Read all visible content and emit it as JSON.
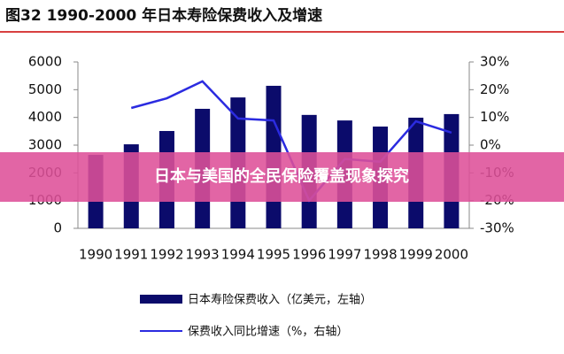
{
  "chart_data": {
    "type": "bar-line",
    "title": "图32 1990-2000 年日本寿险保费收入及增速",
    "categories": [
      "1990",
      "1991",
      "1992",
      "1993",
      "1994",
      "1995",
      "1996",
      "1997",
      "1998",
      "1999",
      "2000"
    ],
    "series": [
      {
        "name": "日本寿险保费收入（亿美元，左轴）",
        "type": "bar",
        "color": "#0b0b6b",
        "values": [
          2650,
          3030,
          3510,
          4310,
          4720,
          5140,
          4090,
          3890,
          3670,
          3990,
          4120
        ]
      },
      {
        "name": "保费收入同比增速（%，右轴）",
        "type": "line",
        "axis": "y2",
        "color": "#2b2be0",
        "values": [
          null,
          13.4,
          16.9,
          23,
          9.6,
          8.9,
          -20,
          -5,
          -6,
          8.6,
          4.5
        ]
      }
    ],
    "ylim": [
      0,
      6000
    ],
    "yticks": [
      0,
      1000,
      2000,
      3000,
      4000,
      5000,
      6000
    ],
    "y2lim": [
      -30,
      30
    ],
    "y2ticks": [
      {
        "value": -30,
        "label": "-30%"
      },
      {
        "value": -20,
        "label": "-20%"
      },
      {
        "value": -10,
        "label": "-10%"
      },
      {
        "value": 0,
        "label": "0%"
      },
      {
        "value": 10,
        "label": "10%"
      },
      {
        "value": 20,
        "label": "20%"
      },
      {
        "value": 30,
        "label": "30%"
      }
    ],
    "grid": false,
    "legend": "bottom"
  },
  "overlay_text": "日本与美国的全民保险覆盖现象探究"
}
